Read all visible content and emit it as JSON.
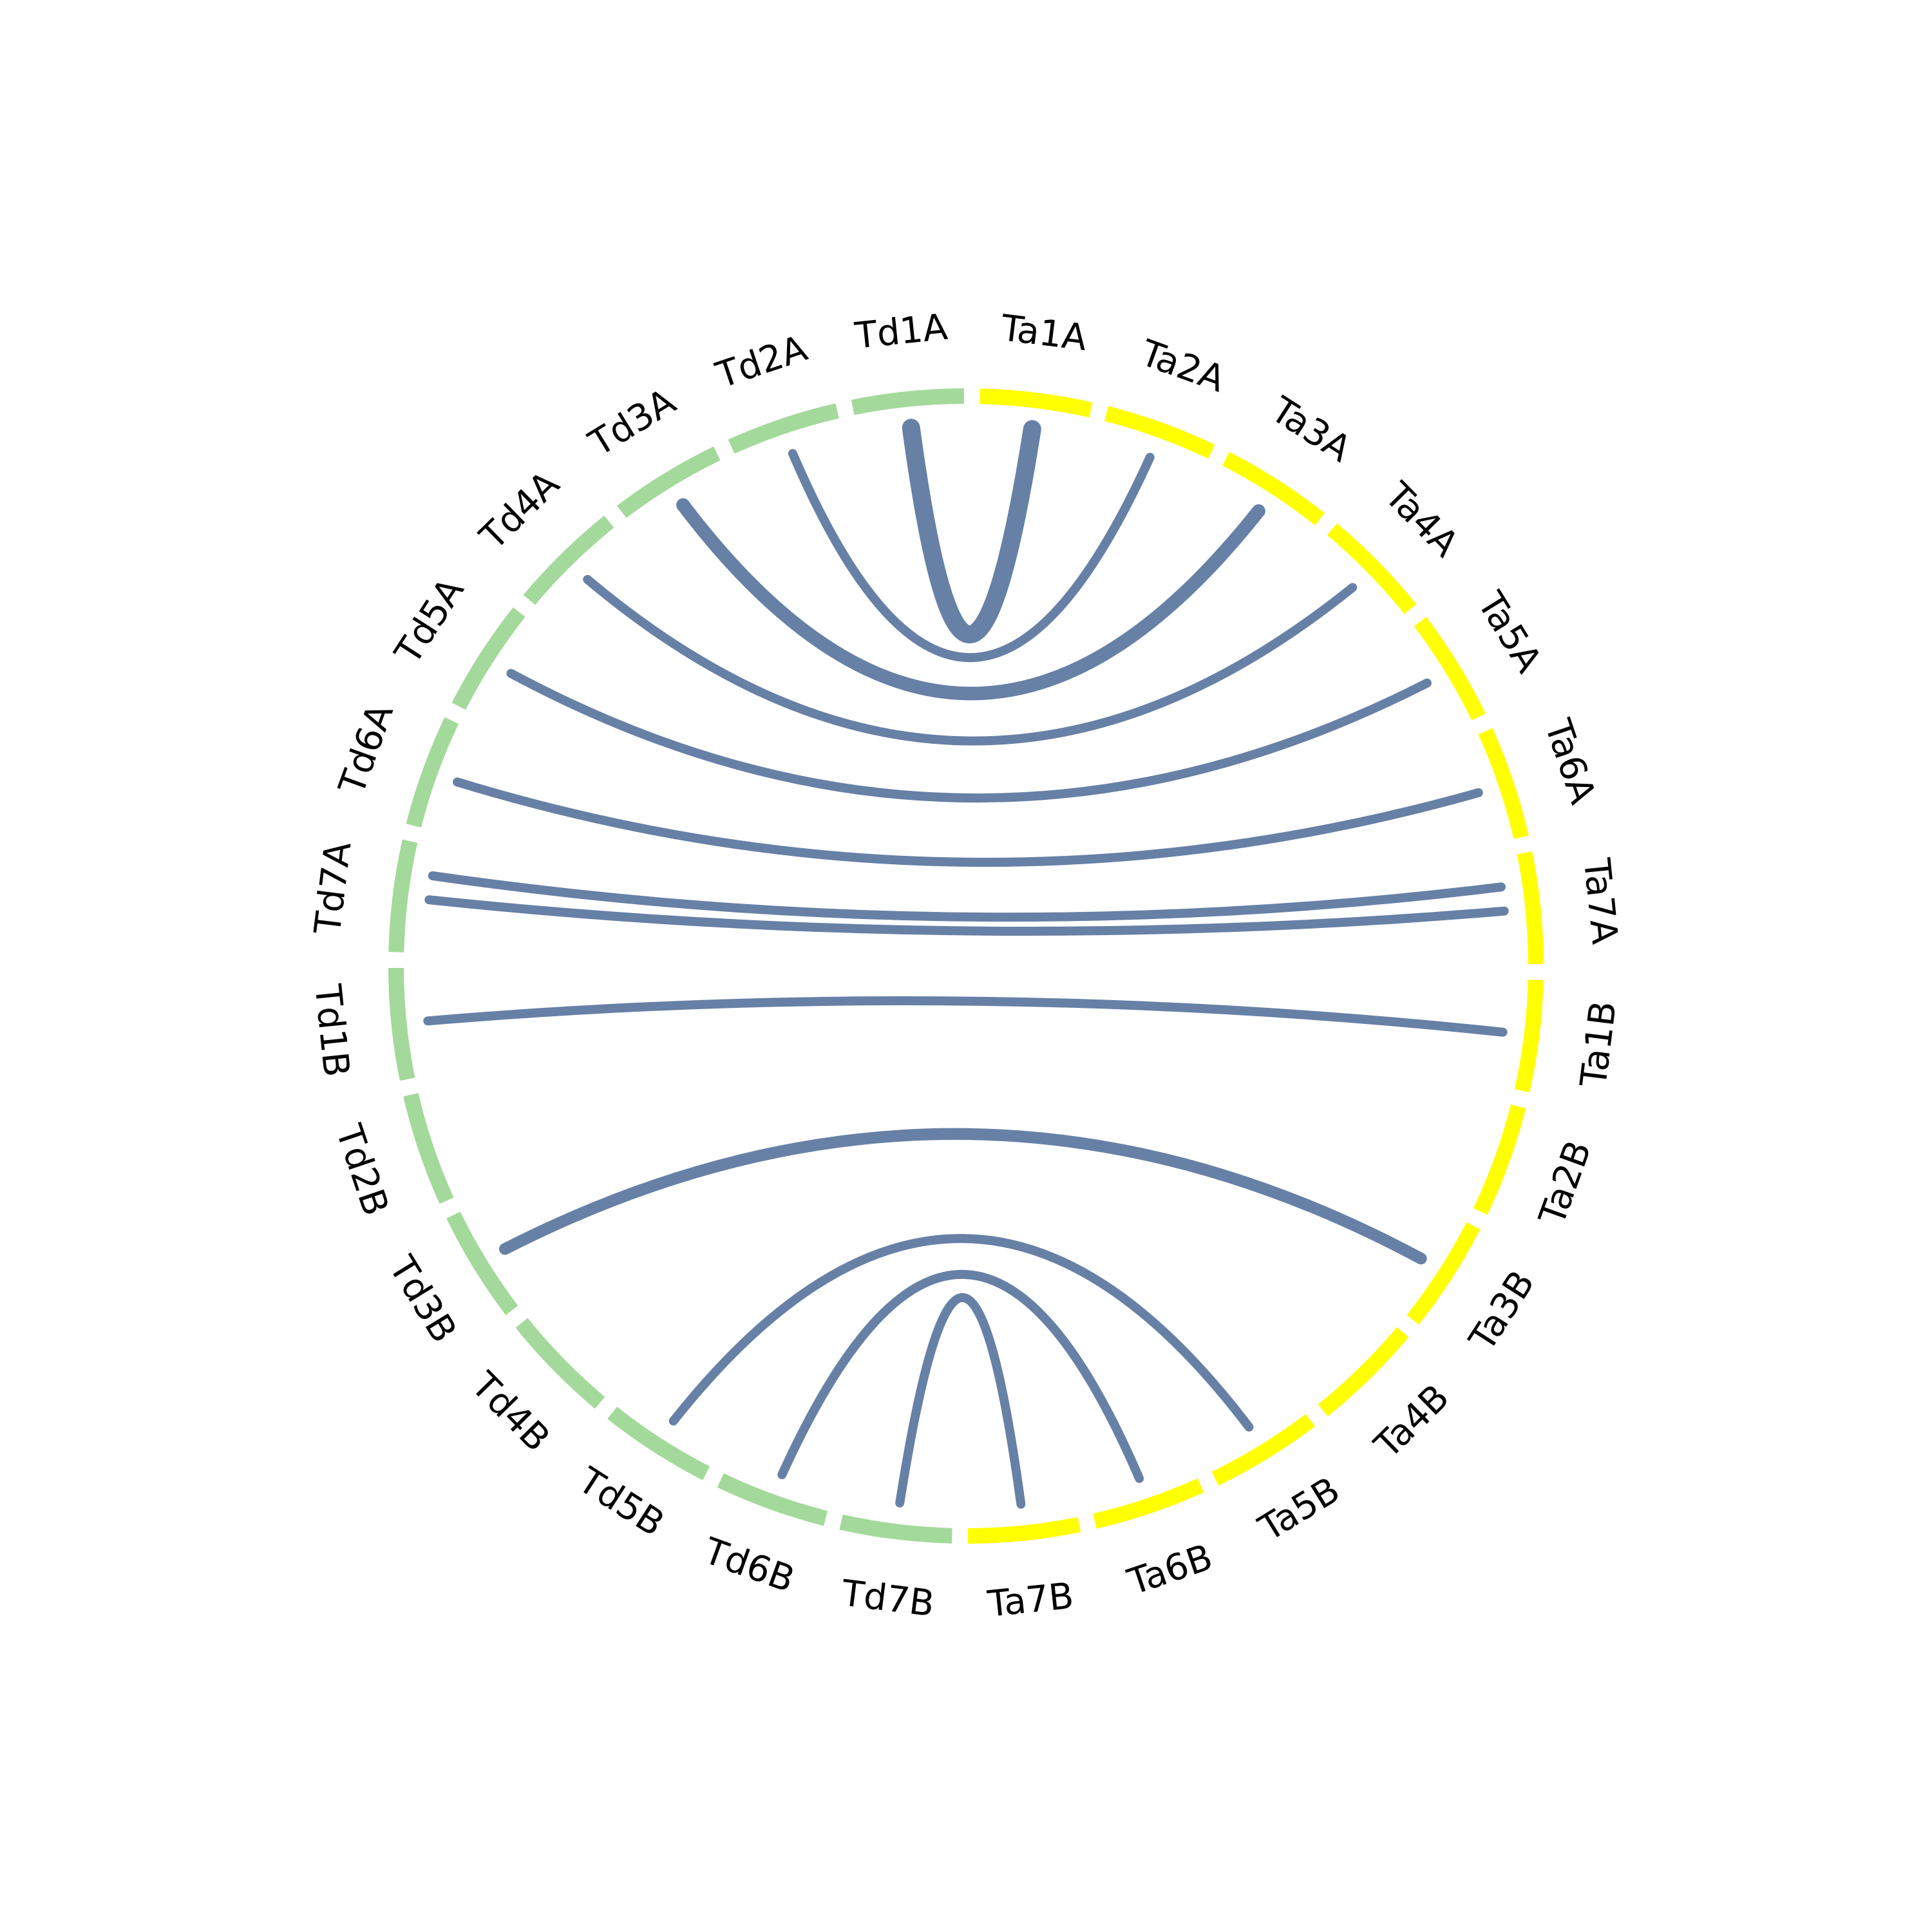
{
  "diagram": {
    "type": "circos-chord",
    "colors": {
      "td_segments": "#a3d99a",
      "ta_segments": "#ffff00",
      "links": "#6780a6",
      "labels": "#000000",
      "background": "#ffffff"
    },
    "segments": [
      {
        "id": "Ta1A",
        "label": "Ta1A",
        "group": "Ta"
      },
      {
        "id": "Ta2A",
        "label": "Ta2A",
        "group": "Ta"
      },
      {
        "id": "Ta3A",
        "label": "Ta3A",
        "group": "Ta"
      },
      {
        "id": "Ta4A",
        "label": "Ta4A",
        "group": "Ta"
      },
      {
        "id": "Ta5A",
        "label": "Ta5A",
        "group": "Ta"
      },
      {
        "id": "Ta6A",
        "label": "Ta6A",
        "group": "Ta"
      },
      {
        "id": "Ta7A",
        "label": "Ta7A",
        "group": "Ta"
      },
      {
        "id": "Ta1B",
        "label": "Ta1B",
        "group": "Ta"
      },
      {
        "id": "Ta2B",
        "label": "Ta2B",
        "group": "Ta"
      },
      {
        "id": "Ta3B",
        "label": "Ta3B",
        "group": "Ta"
      },
      {
        "id": "Ta4B",
        "label": "Ta4B",
        "group": "Ta"
      },
      {
        "id": "Ta5B",
        "label": "Ta5B",
        "group": "Ta"
      },
      {
        "id": "Ta6B",
        "label": "Ta6B",
        "group": "Ta"
      },
      {
        "id": "Ta7B",
        "label": "Ta7B",
        "group": "Ta"
      },
      {
        "id": "Td7B",
        "label": "Td7B",
        "group": "Td"
      },
      {
        "id": "Td6B",
        "label": "Td6B",
        "group": "Td"
      },
      {
        "id": "Td5B",
        "label": "Td5B",
        "group": "Td"
      },
      {
        "id": "Td4B",
        "label": "Td4B",
        "group": "Td"
      },
      {
        "id": "Td3B",
        "label": "Td3B",
        "group": "Td"
      },
      {
        "id": "Td2B",
        "label": "Td2B",
        "group": "Td"
      },
      {
        "id": "Td1B",
        "label": "Td1B",
        "group": "Td"
      },
      {
        "id": "Td7A",
        "label": "Td7A",
        "group": "Td"
      },
      {
        "id": "Td6A",
        "label": "Td6A",
        "group": "Td"
      },
      {
        "id": "Td5A",
        "label": "Td5A",
        "group": "Td"
      },
      {
        "id": "Td4A",
        "label": "Td4A",
        "group": "Td"
      },
      {
        "id": "Td3A",
        "label": "Td3A",
        "group": "Td"
      },
      {
        "id": "Td2A",
        "label": "Td2A",
        "group": "Td"
      },
      {
        "id": "Td1A",
        "label": "Td1A",
        "group": "Td"
      }
    ],
    "links": [
      {
        "from": "Td1A",
        "to": "Ta1A",
        "weight": 2
      },
      {
        "from": "Td2A",
        "to": "Ta2A",
        "weight": 1
      },
      {
        "from": "Td3A",
        "to": "Ta3A",
        "weight": 1.5
      },
      {
        "from": "Td4A",
        "to": "Ta4A",
        "weight": 1
      },
      {
        "from": "Td5A",
        "to": "Ta5A",
        "weight": 1
      },
      {
        "from": "Td6A",
        "to": "Ta6A",
        "weight": 1
      },
      {
        "from": "Td7A",
        "to": "Ta7A",
        "weight": 1
      },
      {
        "from": "Td7A",
        "to": "Ta7A",
        "weight": 1
      },
      {
        "from": "Td1B",
        "to": "Ta1B",
        "weight": 1
      },
      {
        "from": "Td3B",
        "to": "Ta3B",
        "weight": 1.3
      },
      {
        "from": "Td5B",
        "to": "Ta5B",
        "weight": 1
      },
      {
        "from": "Td6B",
        "to": "Ta6B",
        "weight": 1
      },
      {
        "from": "Td7B",
        "to": "Ta7B",
        "weight": 1
      }
    ]
  }
}
